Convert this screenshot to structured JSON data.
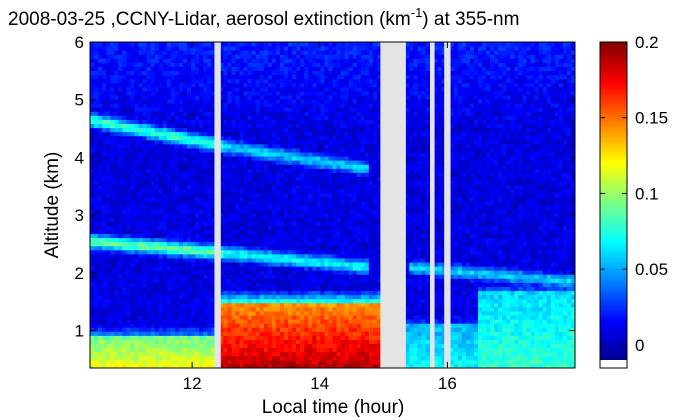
{
  "chart_data": {
    "type": "heatmap",
    "title_main": "2008-03-25 ,CCNY-Lidar, aerosol extinction (km",
    "title_sup": "-1",
    "title_tail": ") at 355-nm",
    "xlabel": "Local time (hour)",
    "ylabel": "Altitude (km)",
    "xlim": [
      10.4,
      18.0
    ],
    "ylim": [
      0.35,
      6.0
    ],
    "xticks": [
      "12",
      "14",
      "16"
    ],
    "xtick_values": [
      12,
      14,
      16
    ],
    "yticks": [
      "1",
      "2",
      "3",
      "4",
      "5",
      "6"
    ],
    "ytick_values": [
      1,
      2,
      3,
      4,
      5,
      6
    ],
    "colorbar": {
      "range": [
        -0.01,
        0.2
      ],
      "ticks": [
        "0",
        "0.05",
        "0.1",
        "0.15",
        "0.2"
      ],
      "tick_values": [
        0,
        0.05,
        0.1,
        0.15,
        0.2
      ],
      "colormap": "jet"
    },
    "background_extinction": 0.01,
    "data_gaps_hour": [
      [
        12.35,
        12.45
      ],
      [
        14.95,
        15.35
      ],
      [
        15.75,
        15.8
      ],
      [
        15.95,
        16.05
      ]
    ],
    "aerosol_layers": [
      {
        "t_start": 10.4,
        "t_end": 12.5,
        "alt_start": 4.65,
        "alt_end": 4.2,
        "value": 0.08
      },
      {
        "t_start": 12.5,
        "t_end": 14.8,
        "alt_start": 4.2,
        "alt_end": 3.8,
        "value": 0.06
      },
      {
        "t_start": 10.4,
        "t_end": 12.5,
        "alt_start": 2.55,
        "alt_end": 2.35,
        "value": 0.09
      },
      {
        "t_start": 12.5,
        "t_end": 14.8,
        "alt_start": 2.35,
        "alt_end": 2.1,
        "value": 0.07
      },
      {
        "t_start": 15.4,
        "t_end": 18.0,
        "alt_start": 2.1,
        "alt_end": 1.85,
        "value": 0.06
      }
    ],
    "boundary_layer": [
      {
        "t_start": 10.4,
        "t_end": 12.35,
        "top_km": 0.9,
        "value": 0.12
      },
      {
        "t_start": 12.45,
        "t_end": 14.95,
        "top_km": 1.5,
        "value": 0.19
      },
      {
        "t_start": 15.35,
        "t_end": 16.5,
        "top_km": 1.1,
        "value": 0.07
      },
      {
        "t_start": 16.5,
        "t_end": 18.0,
        "top_km": 1.7,
        "value": 0.08
      }
    ]
  }
}
